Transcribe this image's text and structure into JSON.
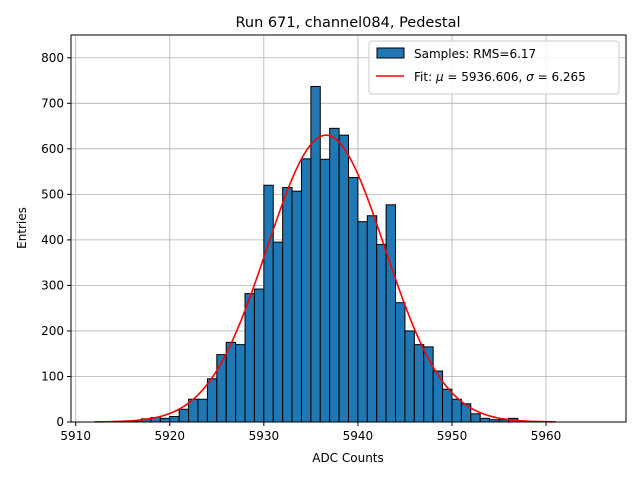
{
  "chart_data": {
    "type": "bar",
    "title": "Run 671, channel084, Pedestal",
    "xlabel": "ADC Counts",
    "ylabel": "Entries",
    "xlim": [
      5909.5,
      5968.5
    ],
    "ylim": [
      0,
      850
    ],
    "xticks": [
      5910,
      5920,
      5930,
      5940,
      5950,
      5960
    ],
    "yticks": [
      0,
      100,
      200,
      300,
      400,
      500,
      600,
      700,
      800
    ],
    "grid": true,
    "legend_position": "top-right",
    "bin_width": 1,
    "bar_color": "#1f77b4",
    "fit_color": "#ff0000",
    "legend": {
      "samples_label": "Samples: RMS=6.17",
      "fit_label_prefix": "Fit: ",
      "mu_symbol": "μ",
      "mu_text": " = 5936.606, ",
      "sigma_symbol": "σ",
      "sigma_text": " = 6.265"
    },
    "histogram": {
      "bin_starts": [
        5916,
        5917,
        5918,
        5919,
        5920,
        5921,
        5922,
        5923,
        5924,
        5925,
        5926,
        5927,
        5928,
        5929,
        5930,
        5931,
        5932,
        5933,
        5934,
        5935,
        5936,
        5937,
        5938,
        5939,
        5940,
        5941,
        5942,
        5943,
        5944,
        5945,
        5946,
        5947,
        5948,
        5949,
        5950,
        5951,
        5952,
        5953,
        5954,
        5955,
        5956
      ],
      "counts": [
        2,
        7,
        10,
        8,
        12,
        28,
        50,
        50,
        95,
        148,
        175,
        170,
        282,
        292,
        520,
        395,
        515,
        507,
        578,
        737,
        577,
        645,
        630,
        537,
        440,
        453,
        390,
        477,
        262,
        200,
        170,
        165,
        112,
        72,
        50,
        40,
        18,
        8,
        5,
        5,
        8
      ]
    },
    "fit": {
      "type": "gaussian",
      "mu": 5936.606,
      "sigma": 6.265,
      "amplitude": 630,
      "x_range": [
        5912,
        5961
      ]
    }
  }
}
